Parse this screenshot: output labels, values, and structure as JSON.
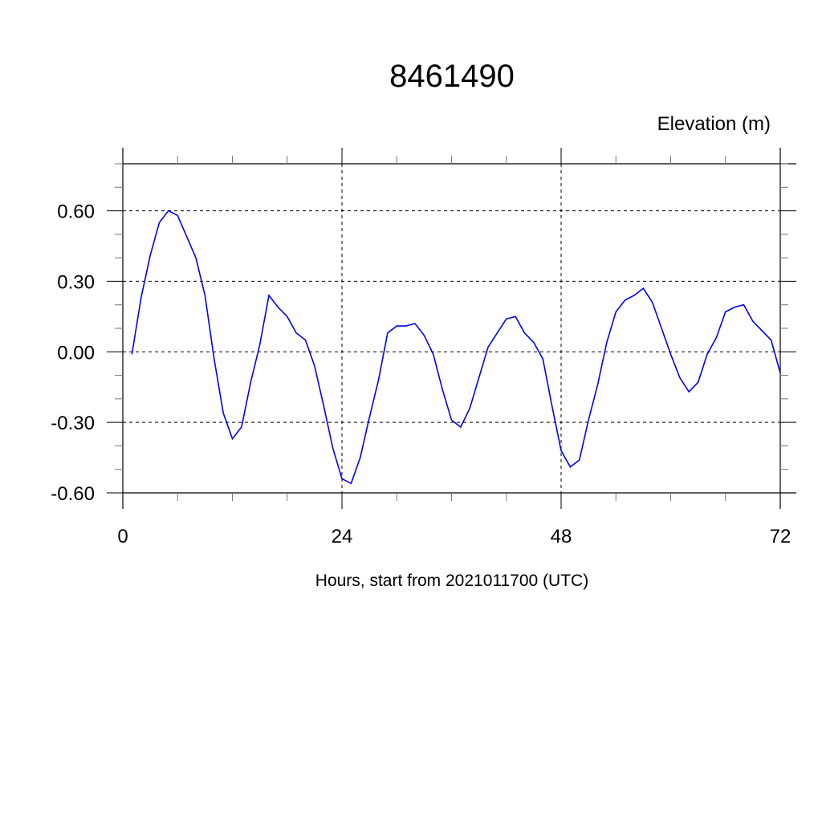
{
  "chart_data": {
    "type": "line",
    "title": "8461490",
    "subtitle": "Elevation (m)",
    "xlabel": "Hours, start from 2021011700 (UTC)",
    "ylabel": "",
    "xlim": [
      0,
      72
    ],
    "ylim": [
      -0.6,
      0.8
    ],
    "x_ticks": [
      0,
      24,
      48,
      72
    ],
    "x_tick_labels": [
      "0",
      "24",
      "48",
      "72"
    ],
    "x_minor_step": 6,
    "y_ticks": [
      0.6,
      0.3,
      0.0,
      -0.3,
      -0.6
    ],
    "y_tick_labels": [
      "0.60",
      "0.30",
      "0.00",
      "-0.30",
      "-0.60"
    ],
    "y_minor_step": 0.1,
    "grid": true,
    "grid_style": "dashed",
    "line_color": "#0000ff",
    "series": [
      {
        "x": [
          1,
          2,
          3,
          4,
          5,
          6,
          7,
          8,
          9,
          10,
          11,
          12,
          13,
          14,
          15,
          16,
          17,
          18,
          19,
          20,
          21,
          22,
          23,
          24,
          25,
          26,
          27,
          28,
          29,
          30,
          31,
          32,
          33,
          34,
          35,
          36,
          37,
          38,
          39,
          40,
          41,
          42,
          43,
          44,
          45,
          46,
          47,
          48,
          49,
          50,
          51,
          52,
          53,
          54,
          55,
          56,
          57,
          58,
          59,
          60,
          61,
          62,
          63,
          64,
          65,
          66,
          67,
          68,
          69,
          70,
          71,
          72
        ],
        "values": [
          -0.01,
          0.23,
          0.41,
          0.55,
          0.6,
          0.58,
          0.49,
          0.4,
          0.24,
          -0.03,
          -0.26,
          -0.37,
          -0.32,
          -0.13,
          0.03,
          0.24,
          0.19,
          0.15,
          0.08,
          0.05,
          -0.06,
          -0.23,
          -0.41,
          -0.54,
          -0.56,
          -0.45,
          -0.28,
          -0.12,
          0.08,
          0.11,
          0.11,
          0.12,
          0.07,
          -0.01,
          -0.16,
          -0.29,
          -0.32,
          -0.24,
          -0.11,
          0.02,
          0.08,
          0.14,
          0.15,
          0.08,
          0.04,
          -0.03,
          -0.23,
          -0.42,
          -0.49,
          -0.46,
          -0.29,
          -0.14,
          0.04,
          0.17,
          0.22,
          0.24,
          0.27,
          0.21,
          0.1,
          -0.01,
          -0.11,
          -0.17,
          -0.13,
          -0.01,
          0.06,
          0.17,
          0.19,
          0.2,
          0.13,
          0.09,
          0.05,
          -0.09
        ]
      }
    ]
  }
}
